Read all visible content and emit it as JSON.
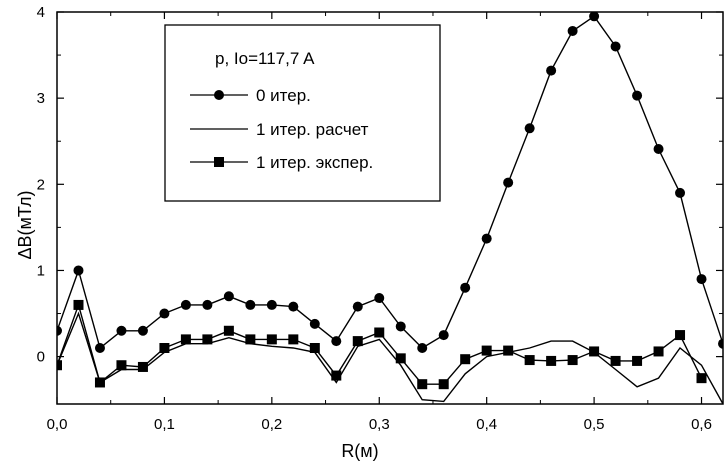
{
  "chart_data": {
    "type": "line",
    "title": "",
    "xlabel": "R(м)",
    "ylabel": "ΔB(мТл)",
    "xlim": [
      0.0,
      0.62
    ],
    "ylim": [
      -0.55,
      4.0
    ],
    "x_ticks": [
      "0,0",
      "0,1",
      "0,2",
      "0,3",
      "0,4",
      "0,5",
      "0,6"
    ],
    "x_tick_values": [
      0.0,
      0.1,
      0.2,
      0.3,
      0.4,
      0.5,
      0.6
    ],
    "y_ticks": [
      "0",
      "1",
      "2",
      "3",
      "4"
    ],
    "y_tick_values": [
      0,
      1,
      2,
      3,
      4
    ],
    "grid": false,
    "legend_position": "top-left",
    "legend_title": "p, Io=117,7 A",
    "series": [
      {
        "name": "0 итер.",
        "marker": "circle",
        "color": "#000000",
        "x": [
          0.0,
          0.02,
          0.04,
          0.06,
          0.08,
          0.1,
          0.12,
          0.14,
          0.16,
          0.18,
          0.2,
          0.22,
          0.24,
          0.26,
          0.28,
          0.3,
          0.32,
          0.34,
          0.36,
          0.38,
          0.4,
          0.42,
          0.44,
          0.46,
          0.48,
          0.5,
          0.52,
          0.54,
          0.56,
          0.58,
          0.6,
          0.62
        ],
        "y": [
          0.3,
          1.0,
          0.1,
          0.3,
          0.3,
          0.5,
          0.6,
          0.6,
          0.7,
          0.6,
          0.6,
          0.58,
          0.38,
          0.18,
          0.58,
          0.68,
          0.35,
          0.1,
          0.25,
          0.8,
          1.37,
          2.02,
          2.65,
          3.32,
          3.78,
          3.95,
          3.6,
          3.03,
          2.41,
          1.9,
          0.9,
          0.15
        ]
      },
      {
        "name": "1 итер. расчет",
        "marker": "none",
        "color": "#000000",
        "x": [
          0.0,
          0.02,
          0.04,
          0.06,
          0.08,
          0.1,
          0.12,
          0.14,
          0.16,
          0.18,
          0.2,
          0.22,
          0.24,
          0.26,
          0.28,
          0.3,
          0.32,
          0.34,
          0.36,
          0.38,
          0.4,
          0.42,
          0.44,
          0.46,
          0.48,
          0.5,
          0.52,
          0.54,
          0.56,
          0.58,
          0.6,
          0.62
        ],
        "y": [
          -0.1,
          0.5,
          -0.3,
          -0.15,
          -0.15,
          0.05,
          0.15,
          0.15,
          0.22,
          0.15,
          0.12,
          0.1,
          0.05,
          -0.3,
          0.12,
          0.2,
          -0.1,
          -0.5,
          -0.52,
          -0.2,
          0.0,
          0.05,
          0.1,
          0.18,
          0.18,
          0.05,
          -0.15,
          -0.35,
          -0.25,
          0.1,
          -0.1,
          -0.55
        ]
      },
      {
        "name": "1 итер. экспер.",
        "marker": "square",
        "color": "#000000",
        "x": [
          0.0,
          0.02,
          0.04,
          0.06,
          0.08,
          0.1,
          0.12,
          0.14,
          0.16,
          0.18,
          0.2,
          0.22,
          0.24,
          0.26,
          0.28,
          0.3,
          0.32,
          0.34,
          0.36,
          0.38,
          0.4,
          0.42,
          0.44,
          0.46,
          0.48,
          0.5,
          0.52,
          0.54,
          0.56,
          0.58,
          0.6
        ],
        "y": [
          -0.1,
          0.6,
          -0.3,
          -0.1,
          -0.12,
          0.1,
          0.2,
          0.2,
          0.3,
          0.2,
          0.2,
          0.2,
          0.1,
          -0.22,
          0.18,
          0.28,
          -0.02,
          -0.32,
          -0.32,
          -0.03,
          0.07,
          0.07,
          -0.04,
          -0.05,
          -0.04,
          0.06,
          -0.05,
          -0.05,
          0.06,
          0.25,
          -0.25
        ]
      }
    ]
  }
}
